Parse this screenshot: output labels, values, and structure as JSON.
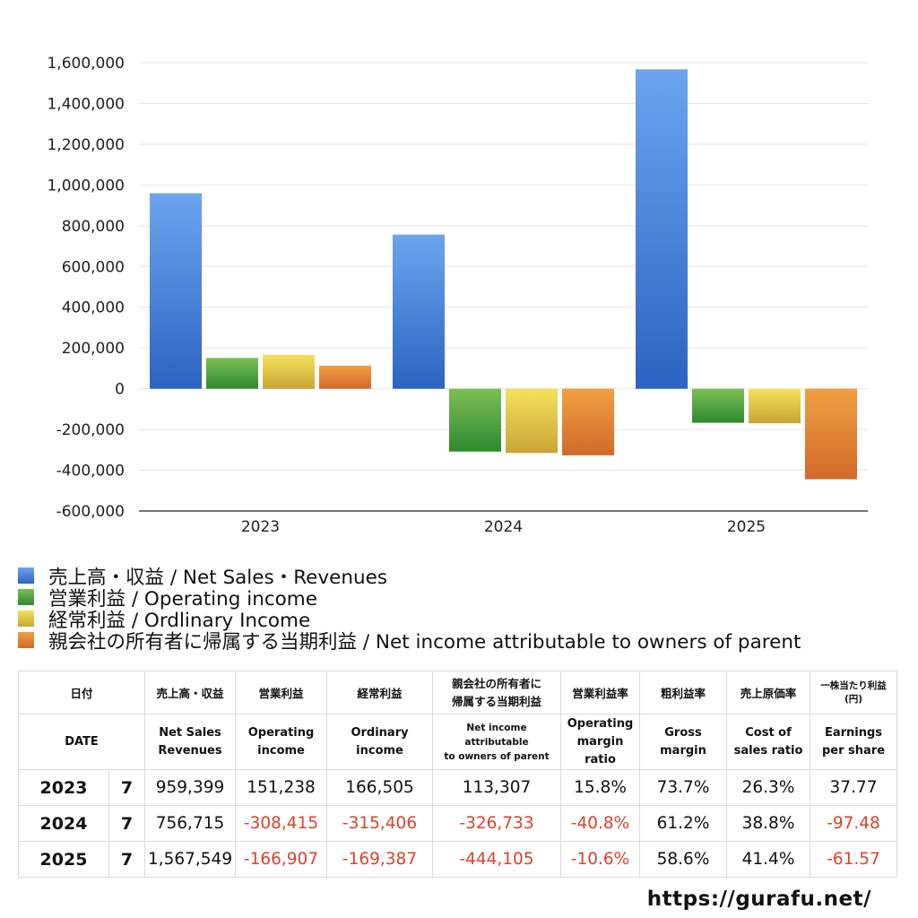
{
  "chart_data": {
    "type": "bar",
    "categories": [
      "2023",
      "2024",
      "2025"
    ],
    "series": [
      {
        "name": "売上高・収益 / Net Sales・Revenues",
        "values": [
          959399,
          756715,
          1567549
        ],
        "color_top": "#6ba5f0",
        "color_bottom": "#2d63c1"
      },
      {
        "name": "営業利益 / Operating income",
        "values": [
          151238,
          -308415,
          -166907
        ],
        "color_top": "#7bbf55",
        "color_bottom": "#2f8a2f"
      },
      {
        "name": "経常利益 / Ordlinary Income",
        "values": [
          166505,
          -315406,
          -169387
        ],
        "color_top": "#f4e25c",
        "color_bottom": "#c9a535"
      },
      {
        "name": "親会社の所有者に帰属する当期利益 / Net income attributable to owners of parent",
        "values": [
          113307,
          -326733,
          -444105
        ],
        "color_top": "#f0a040",
        "color_bottom": "#d2692b"
      }
    ],
    "ylim": [
      -600000,
      1600000
    ],
    "yticks": [
      "1,600,000",
      "1,400,000",
      "1,200,000",
      "1,000,000",
      "800,000",
      "600,000",
      "400,000",
      "200,000",
      "0",
      "-200,000",
      "-400,000",
      "-600,000"
    ],
    "ytick_values": [
      1600000,
      1400000,
      1200000,
      1000000,
      800000,
      600000,
      400000,
      200000,
      0,
      -200000,
      -400000,
      -600000
    ],
    "grid": true,
    "legend_position": "bottom-left"
  },
  "table": {
    "header_jp": [
      "日付",
      "",
      "売上高・収益",
      "営業利益",
      "経常利益",
      "親会社の所有者に",
      "帰属する当期利益",
      "営業利益率",
      "粗利益率",
      "売上原価率",
      "一株当たり利益",
      "(円)"
    ],
    "header_en": {
      "date": "DATE",
      "sales1": "Net Sales",
      "sales2": "Revenues",
      "op1": "Operating",
      "op2": "income",
      "ord1": "Ordinary",
      "ord2": "income",
      "ni1": "Net income attributable",
      "ni2": "to owners of parent",
      "opm1": "Operating",
      "opm2": "margin",
      "opm3": "ratio",
      "gm1": "Gross",
      "gm2": "margin",
      "cos1": "Cost of",
      "cos2": "sales ratio",
      "eps1": "Earnings",
      "eps2": "per share"
    },
    "rows": [
      {
        "year": "2023",
        "count": "7",
        "sales": "959,399",
        "op": "151,238",
        "ord": "166,505",
        "ni": "113,307",
        "opm": "15.8%",
        "gm": "73.7%",
        "cos": "26.3%",
        "eps": "37.77"
      },
      {
        "year": "2024",
        "count": "7",
        "sales": "756,715",
        "op": "-308,415",
        "ord": "-315,406",
        "ni": "-326,733",
        "opm": "-40.8%",
        "gm": "61.2%",
        "cos": "38.8%",
        "eps": "-97.48"
      },
      {
        "year": "2025",
        "count": "7",
        "sales": "1,567,549",
        "op": "-166,907",
        "ord": "-169,387",
        "ni": "-444,105",
        "opm": "-10.6%",
        "gm": "58.6%",
        "cos": "41.4%",
        "eps": "-61.57"
      }
    ]
  },
  "footer": {
    "url": "https://gurafu.net/"
  }
}
